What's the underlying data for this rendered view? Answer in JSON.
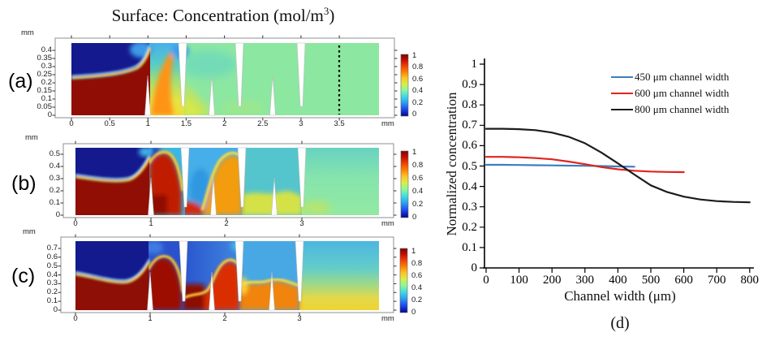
{
  "figure": {
    "title": {
      "pre": "Surface: Concentration (mol/m",
      "sup": "3",
      "post": ")"
    }
  },
  "panels": [
    {
      "id": "a",
      "label": "(a)",
      "y_unit": "mm",
      "x_unit": "mm",
      "y_ticks": [
        "0.4",
        "0.35",
        "0.3",
        "0.25",
        "0.2",
        "0.15",
        "0.1",
        "0.05",
        "0"
      ],
      "x_ticks": [
        "0",
        "0.5",
        "1",
        "1.5",
        "2",
        "2.5",
        "3",
        "3.5"
      ],
      "colorbar_ticks": [
        "1",
        "0.8",
        "0.6",
        "0.4",
        "0.2",
        "0"
      ]
    },
    {
      "id": "b",
      "label": "(b)",
      "y_unit": "mm",
      "x_unit": "mm",
      "y_ticks": [
        "0.5",
        "0.4",
        "0.3",
        "0.2",
        "0.1",
        "0"
      ],
      "x_ticks": [
        "0",
        "1",
        "2",
        "3"
      ],
      "colorbar_ticks": [
        "1",
        "0.8",
        "0.6",
        "0.4",
        "0.2",
        "0"
      ]
    },
    {
      "id": "c",
      "label": "(c)",
      "y_unit": "mm",
      "x_unit": "mm",
      "y_ticks": [
        "0.7",
        "0.6",
        "0.5",
        "0.4",
        "0.3",
        "0.2",
        "0.1",
        "0"
      ],
      "x_ticks": [
        "0",
        "1",
        "2",
        "3"
      ],
      "colorbar_ticks": [
        "1",
        "0.8",
        "0.6",
        "0.4",
        "0.2",
        "0"
      ]
    }
  ],
  "chart": {
    "label": "(d)",
    "xlabel": "Channel width (μm)",
    "ylabel": "Normalized concentration",
    "y_ticks": [
      "0",
      "0.1",
      "0.2",
      "0.3",
      "0.4",
      "0.5",
      "0.6",
      "0.7",
      "0.8",
      "0.9",
      "1"
    ],
    "x_ticks": [
      "0",
      "100",
      "200",
      "300",
      "400",
      "500",
      "600",
      "700",
      "800"
    ],
    "legend": [
      {
        "label": "450 μm channel width",
        "color": "#3c7ec0"
      },
      {
        "label": "600 μm channel width",
        "color": "#e0231e"
      },
      {
        "label": "800 μm channel width",
        "color": "#1c1c1c"
      }
    ]
  },
  "chart_data": {
    "type": "line",
    "title": "",
    "xlabel": "Channel width (μm)",
    "ylabel": "Normalized concentration",
    "xlim": [
      0,
      800
    ],
    "ylim": [
      0,
      1
    ],
    "grid": false,
    "legend_position": "top-right",
    "series": [
      {
        "name": "450 μm channel width",
        "color": "#3c7ec0",
        "x": [
          0,
          50,
          100,
          150,
          200,
          250,
          300,
          350,
          400,
          450
        ],
        "y": [
          0.506,
          0.506,
          0.505,
          0.504,
          0.503,
          0.502,
          0.501,
          0.5,
          0.498,
          0.497
        ]
      },
      {
        "name": "600 μm channel width",
        "color": "#e0231e",
        "x": [
          0,
          50,
          100,
          150,
          200,
          250,
          300,
          350,
          400,
          450,
          500,
          550,
          600
        ],
        "y": [
          0.545,
          0.545,
          0.543,
          0.539,
          0.533,
          0.522,
          0.509,
          0.495,
          0.484,
          0.477,
          0.473,
          0.471,
          0.47
        ]
      },
      {
        "name": "800 μm channel width",
        "color": "#1c1c1c",
        "x": [
          0,
          50,
          100,
          150,
          200,
          250,
          300,
          350,
          400,
          450,
          500,
          550,
          600,
          650,
          700,
          750,
          800
        ],
        "y": [
          0.683,
          0.683,
          0.681,
          0.676,
          0.664,
          0.644,
          0.612,
          0.566,
          0.513,
          0.458,
          0.405,
          0.372,
          0.35,
          0.336,
          0.328,
          0.324,
          0.322
        ]
      }
    ]
  },
  "colorbar_range": {
    "max": "1",
    "min": "0"
  }
}
